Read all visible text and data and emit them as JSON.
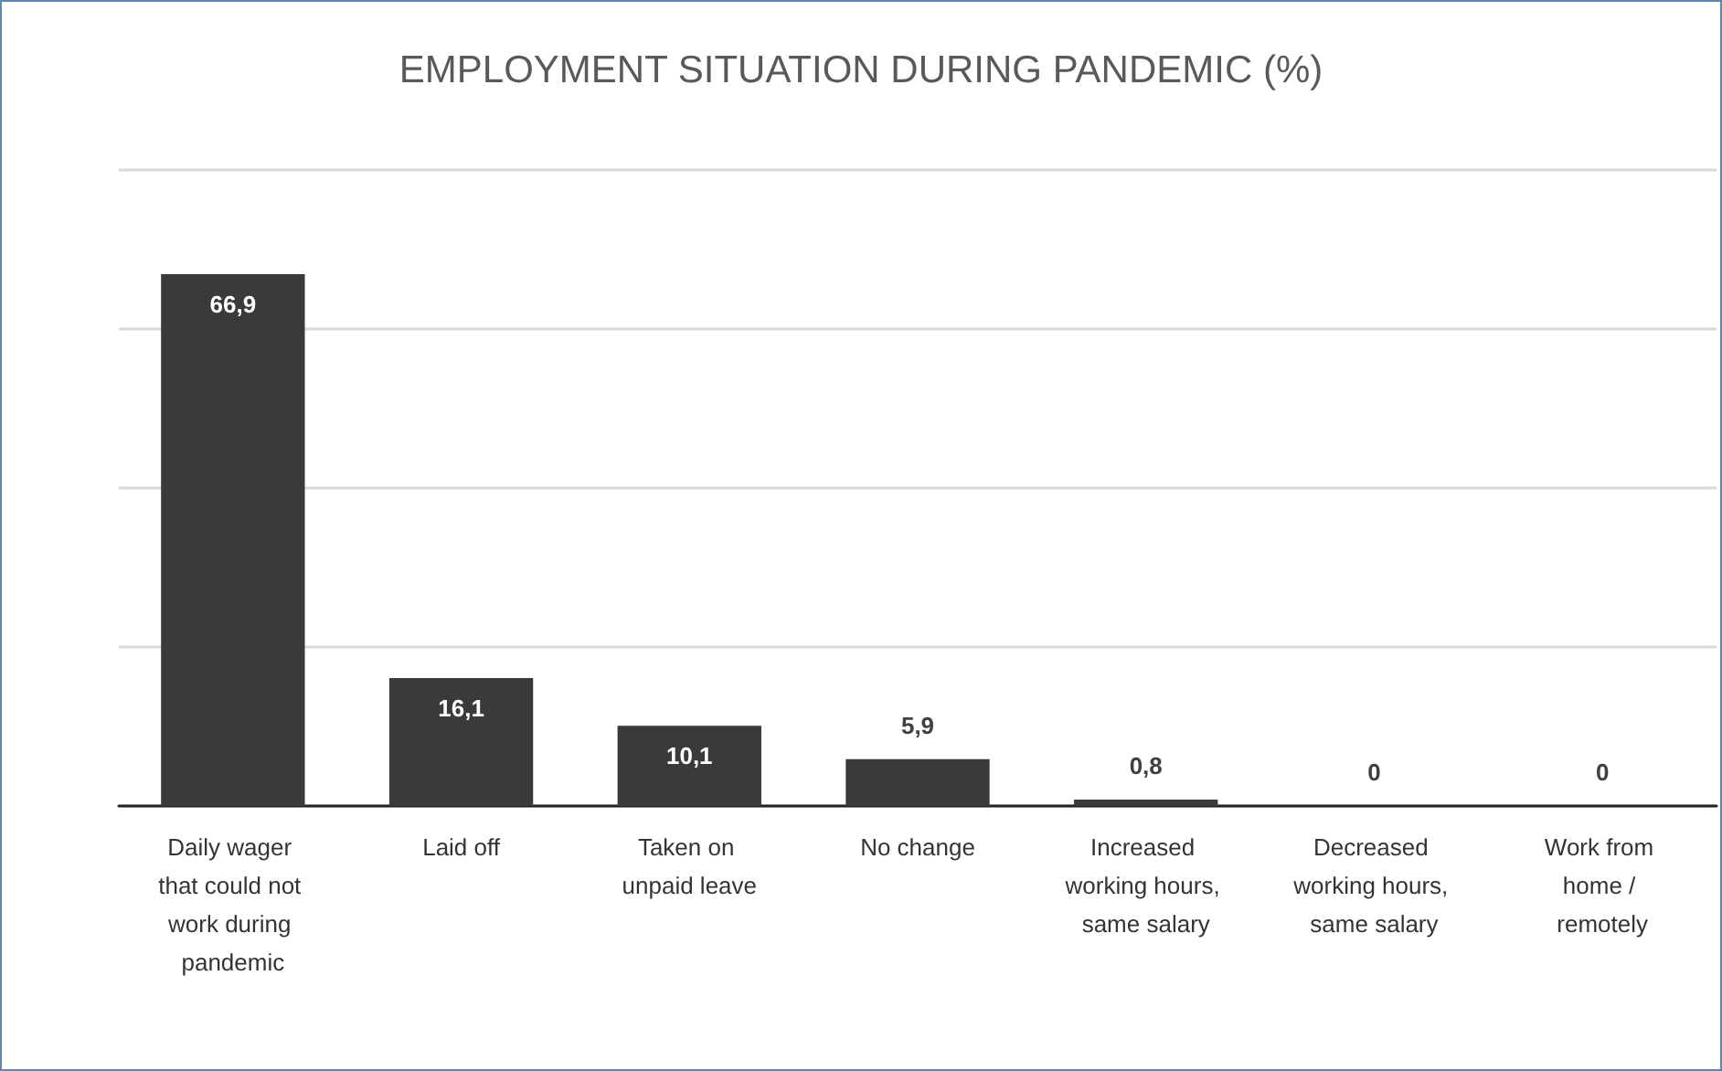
{
  "chart_data": {
    "type": "bar",
    "title": "EMPLOYMENT SITUATION DURING PANDEMIC (%)",
    "categories": [
      "Daily wager that could not work during pandemic",
      "Laid off",
      "Taken on unpaid leave",
      "No change",
      "Increased working hours, same salary",
      "Decreased working hours, same salary",
      "Work from home / remotely"
    ],
    "values": [
      66.9,
      16.1,
      10.1,
      5.9,
      0.8,
      0,
      0
    ],
    "value_labels": [
      "66,9",
      "16,1",
      "10,1",
      "5,9",
      "0,8",
      "0",
      "0"
    ],
    "color": "#3a3a3a",
    "ylim": [
      0,
      80
    ],
    "yticks": [
      {
        "value": 0,
        "label": null
      },
      {
        "value": 20,
        "label": null
      },
      {
        "value": 40,
        "label": null
      },
      {
        "value": 60,
        "label": null
      },
      {
        "value": 80,
        "label": null
      }
    ],
    "tick_labels": "x",
    "grid": "y"
  }
}
